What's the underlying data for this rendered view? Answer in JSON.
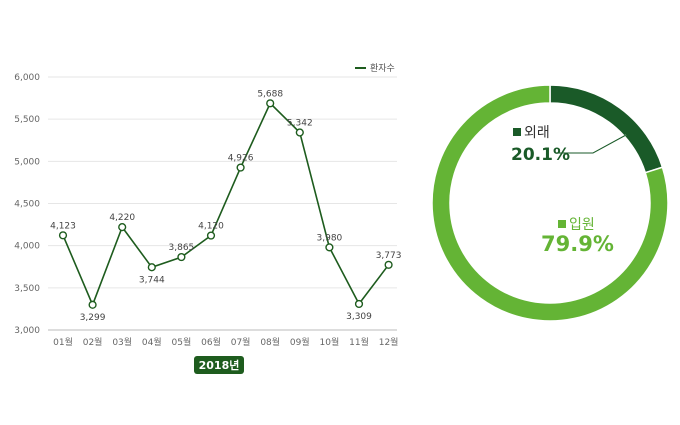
{
  "chart_data": [
    {
      "type": "line",
      "x": [
        "01월",
        "02월",
        "03월",
        "04월",
        "05월",
        "06월",
        "07월",
        "08월",
        "09월",
        "10월",
        "11월",
        "12월"
      ],
      "series": [
        {
          "name": "환자수",
          "values": [
            4123,
            3299,
            4220,
            3744,
            3865,
            4120,
            4926,
            5688,
            5342,
            3980,
            3309,
            3773
          ],
          "labels": [
            "4,123",
            "3,299",
            "4,220",
            "3,744",
            "3,865",
            "4,120",
            "4,926",
            "5,688",
            "5,342",
            "3,980",
            "3,309",
            "3,773"
          ]
        }
      ],
      "ylim": [
        3000,
        6000
      ],
      "yticks": [
        3000,
        3500,
        4000,
        4500,
        5000,
        5500,
        6000
      ],
      "ytick_labels": [
        "3,000",
        "3,500",
        "4,000",
        "4,500",
        "5,000",
        "5,500",
        "6,000"
      ],
      "xlabel": "2018년",
      "legend": "top-right",
      "grid": true,
      "color": "#1e5c1e"
    },
    {
      "type": "pie",
      "style": "donut",
      "slices": [
        {
          "name": "외래",
          "value": 20.1,
          "label": "20.1%",
          "color": "#1a5a28"
        },
        {
          "name": "입원",
          "value": 79.9,
          "label": "79.9%",
          "color": "#64b435"
        }
      ]
    }
  ]
}
